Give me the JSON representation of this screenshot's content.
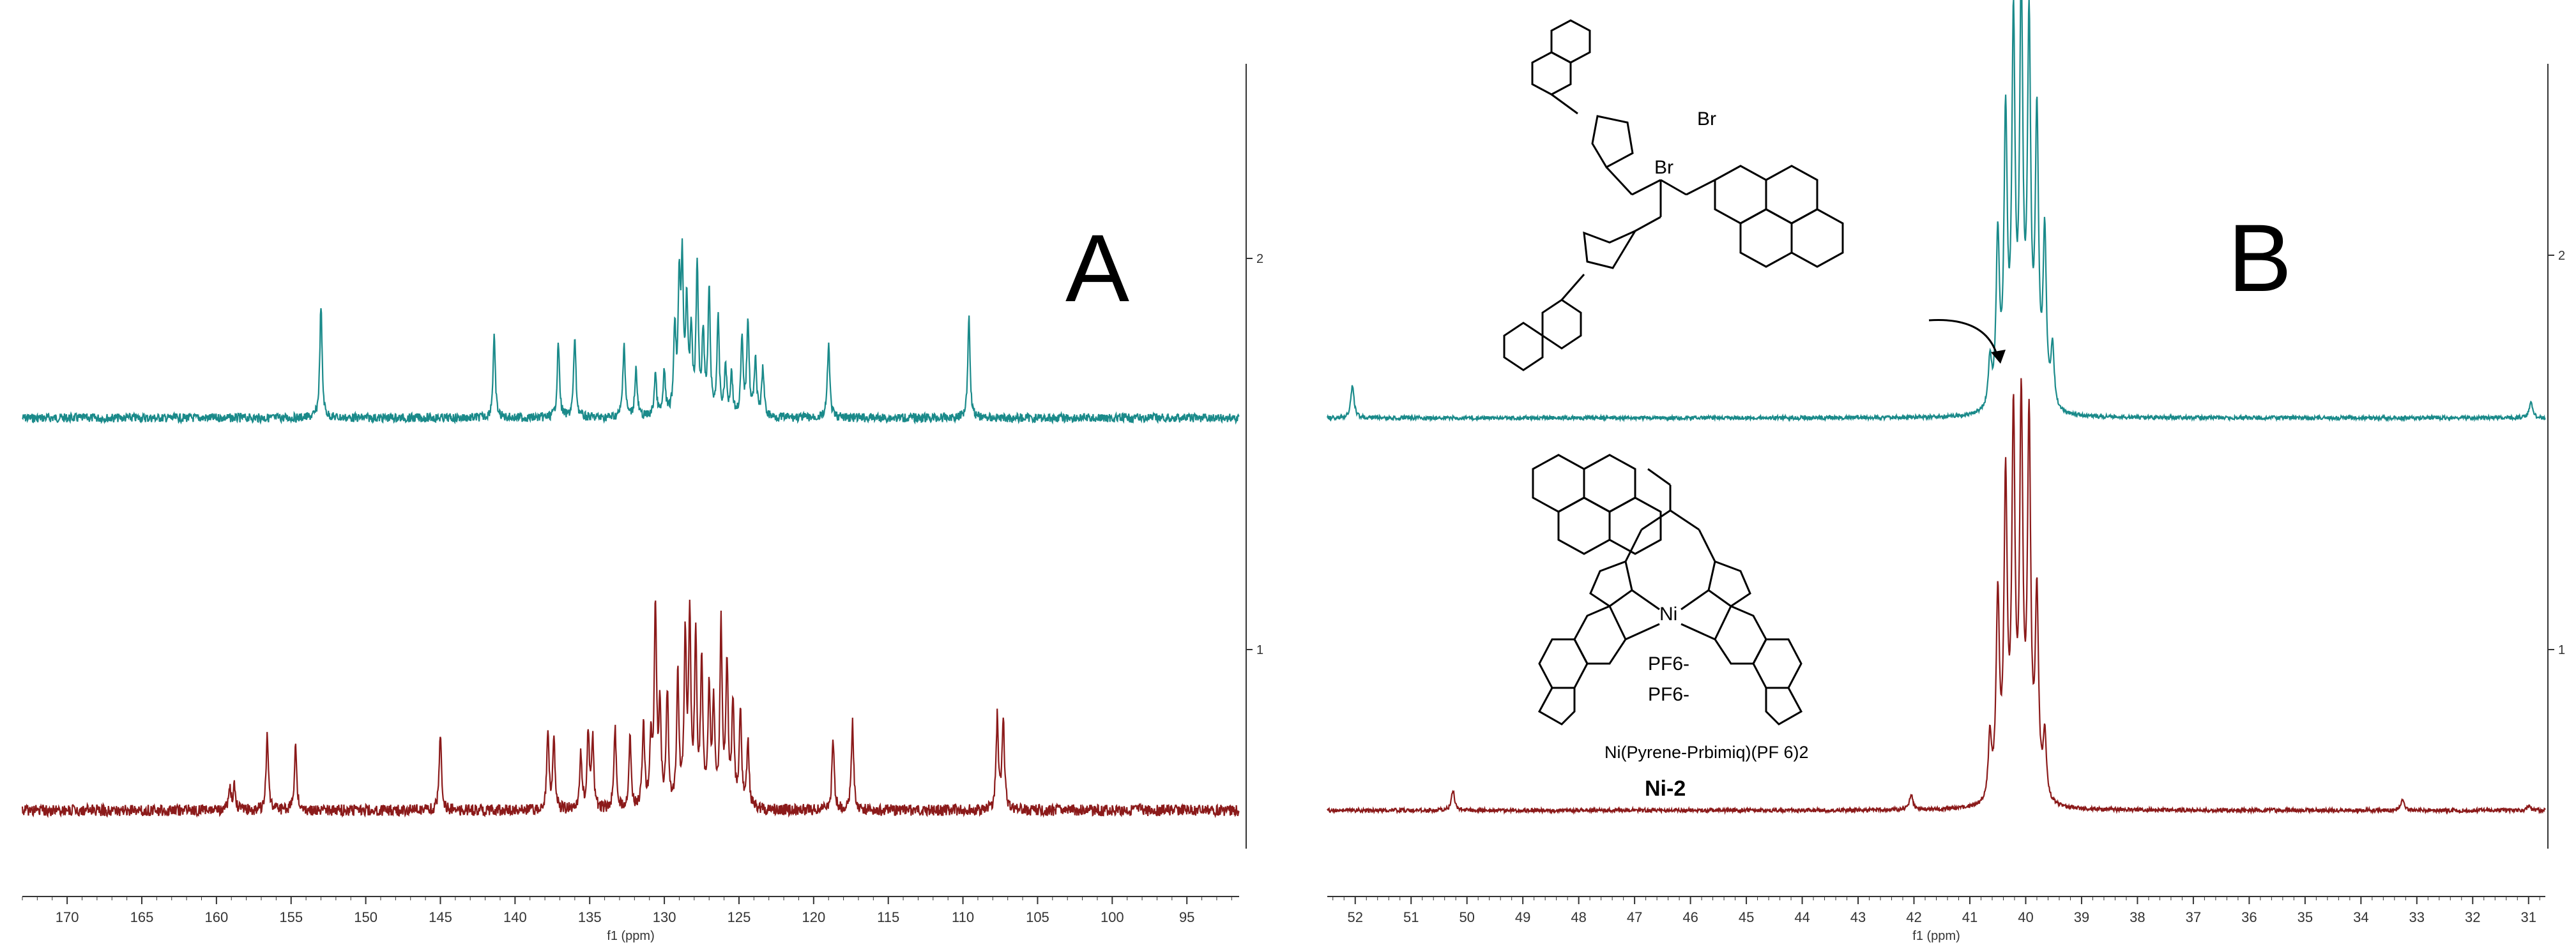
{
  "panels": {
    "A": {
      "label": "A"
    },
    "B": {
      "label": "B"
    }
  },
  "structures": {
    "ligand": {
      "counterion_1": "Br",
      "counterion_2": "Br"
    },
    "complex": {
      "metal": "Ni",
      "counterion_1": "PF6-",
      "counterion_2": "PF6-",
      "name": "Ni(Pyrene-Prbimiq)(PF 6)2",
      "label": "Ni-2"
    }
  },
  "colors": {
    "top_trace": "#1a8a8a",
    "bottom_trace": "#8b1a1a",
    "axis": "#333333"
  },
  "chart_data": [
    {
      "id": "A",
      "type": "line",
      "xlabel": "f1 (ppm)",
      "x_reversed": true,
      "xlim": [
        91.5,
        173
      ],
      "x_ticks": [
        170,
        165,
        160,
        155,
        150,
        145,
        140,
        135,
        130,
        125,
        120,
        115,
        110,
        105,
        100,
        95
      ],
      "right_axis_ticks": [
        "2",
        "1"
      ],
      "grid": false,
      "series": [
        {
          "trace": "top",
          "peaks": [
            {
              "x": 153.0,
              "h": 0.42
            },
            {
              "x": 141.4,
              "h": 0.3
            },
            {
              "x": 137.1,
              "h": 0.28
            },
            {
              "x": 136.0,
              "h": 0.3
            },
            {
              "x": 132.7,
              "h": 0.28
            },
            {
              "x": 131.9,
              "h": 0.18
            },
            {
              "x": 130.6,
              "h": 0.16
            },
            {
              "x": 130.0,
              "h": 0.16
            },
            {
              "x": 129.3,
              "h": 0.32
            },
            {
              "x": 129.0,
              "h": 0.46
            },
            {
              "x": 128.8,
              "h": 0.52
            },
            {
              "x": 128.5,
              "h": 0.4
            },
            {
              "x": 128.2,
              "h": 0.3
            },
            {
              "x": 127.8,
              "h": 0.55
            },
            {
              "x": 127.4,
              "h": 0.3
            },
            {
              "x": 127.0,
              "h": 0.46
            },
            {
              "x": 126.4,
              "h": 0.36
            },
            {
              "x": 125.9,
              "h": 0.18
            },
            {
              "x": 125.5,
              "h": 0.16
            },
            {
              "x": 124.8,
              "h": 0.28
            },
            {
              "x": 124.4,
              "h": 0.36
            },
            {
              "x": 123.9,
              "h": 0.22
            },
            {
              "x": 123.4,
              "h": 0.18
            },
            {
              "x": 119.0,
              "h": 0.28
            },
            {
              "x": 109.6,
              "h": 0.38
            }
          ]
        },
        {
          "trace": "bottom",
          "peaks": [
            {
              "x": 159.1,
              "h": 0.12
            },
            {
              "x": 158.8,
              "h": 0.12
            },
            {
              "x": 156.6,
              "h": 0.36
            },
            {
              "x": 154.7,
              "h": 0.32
            },
            {
              "x": 145.0,
              "h": 0.37
            },
            {
              "x": 137.8,
              "h": 0.35
            },
            {
              "x": 137.4,
              "h": 0.34
            },
            {
              "x": 135.6,
              "h": 0.27
            },
            {
              "x": 135.1,
              "h": 0.36
            },
            {
              "x": 134.8,
              "h": 0.32
            },
            {
              "x": 133.3,
              "h": 0.39
            },
            {
              "x": 132.3,
              "h": 0.34
            },
            {
              "x": 131.4,
              "h": 0.4
            },
            {
              "x": 130.9,
              "h": 0.32
            },
            {
              "x": 130.6,
              "h": 0.94
            },
            {
              "x": 130.3,
              "h": 0.45
            },
            {
              "x": 129.8,
              "h": 0.54
            },
            {
              "x": 129.1,
              "h": 0.63
            },
            {
              "x": 128.6,
              "h": 0.79
            },
            {
              "x": 128.3,
              "h": 0.85
            },
            {
              "x": 127.9,
              "h": 0.77
            },
            {
              "x": 127.5,
              "h": 0.66
            },
            {
              "x": 127.0,
              "h": 0.56
            },
            {
              "x": 126.7,
              "h": 0.45
            },
            {
              "x": 126.2,
              "h": 0.85
            },
            {
              "x": 125.8,
              "h": 0.66
            },
            {
              "x": 125.4,
              "h": 0.5
            },
            {
              "x": 124.9,
              "h": 0.45
            },
            {
              "x": 124.4,
              "h": 0.32
            },
            {
              "x": 118.7,
              "h": 0.34
            },
            {
              "x": 117.4,
              "h": 0.42
            },
            {
              "x": 107.7,
              "h": 0.44
            },
            {
              "x": 107.3,
              "h": 0.44
            }
          ]
        }
      ]
    },
    {
      "id": "B",
      "type": "line",
      "xlabel": "f1 (ppm)",
      "x_reversed": true,
      "xlim": [
        30.7,
        52.5
      ],
      "x_ticks": [
        52,
        51,
        50,
        49,
        48,
        47,
        46,
        45,
        44,
        43,
        42,
        41,
        40,
        39,
        38,
        37,
        36,
        35,
        34,
        33,
        32,
        31
      ],
      "right_axis_ticks": [
        "2",
        "1"
      ],
      "grid": false,
      "series": [
        {
          "trace": "top",
          "peaks": [
            {
              "x": 52.05,
              "h": 0.08
            },
            {
              "x": 40.64,
              "h": 0.12
            },
            {
              "x": 40.5,
              "h": 0.42
            },
            {
              "x": 40.36,
              "h": 0.7
            },
            {
              "x": 40.22,
              "h": 0.92
            },
            {
              "x": 40.08,
              "h": 1.0
            },
            {
              "x": 39.94,
              "h": 0.92
            },
            {
              "x": 39.8,
              "h": 0.7
            },
            {
              "x": 39.66,
              "h": 0.42
            },
            {
              "x": 39.52,
              "h": 0.15
            },
            {
              "x": 30.96,
              "h": 0.04
            }
          ]
        },
        {
          "trace": "bottom",
          "peaks": [
            {
              "x": 50.25,
              "h": 0.05
            },
            {
              "x": 42.05,
              "h": 0.04
            },
            {
              "x": 40.64,
              "h": 0.16
            },
            {
              "x": 40.5,
              "h": 0.5
            },
            {
              "x": 40.36,
              "h": 0.78
            },
            {
              "x": 40.22,
              "h": 0.93
            },
            {
              "x": 40.08,
              "h": 0.96
            },
            {
              "x": 39.94,
              "h": 0.93
            },
            {
              "x": 39.8,
              "h": 0.5
            },
            {
              "x": 39.66,
              "h": 0.16
            },
            {
              "x": 33.25,
              "h": 0.03
            },
            {
              "x": 31.0,
              "h": 0.01
            }
          ]
        }
      ]
    }
  ]
}
